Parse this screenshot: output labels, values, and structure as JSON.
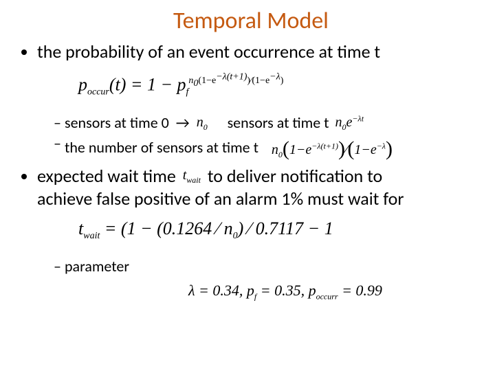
{
  "title": "Temporal Model",
  "bullets": {
    "b1": "the probability of an event occurrence at time t",
    "b2_pre": "expected wait time",
    "b2_mid": "to deliver notification to",
    "b2_line2": "achieve false positive of an alarm 1% must wait for"
  },
  "sub": {
    "s1_pre": "sensors at time 0",
    "s1_post": "sensors at time t",
    "s2_pre": "the number of sensors at time t",
    "s3": "parameter"
  },
  "math": {
    "poccur_lhs": "p",
    "poccur_sub": "occur",
    "p_t": "(t) = 1 − p",
    "pf_sub": "f",
    "n0_base": "n",
    "n0_sub": "0",
    "exp1_open": "(1−e",
    "exp1_sup": "−λ(t+1)",
    "exp1_close": ")",
    "slash": "⁄",
    "exp2_open": "(1−e",
    "exp2_sup": "−λ",
    "exp2_close": ")",
    "arrow": "→",
    "n0e_sup": "−λt",
    "twait": "t",
    "twait_sub": "wait",
    "twait_eq": " = (1 − (0.1264 ⁄ n",
    "twait_eq2": ") ⁄ 0.7117 − 1",
    "params": "λ = 0.34,  p",
    "params_pf": " = 0.35,  p",
    "params_poc_sub": "occurr",
    "params_val": " = 0.99"
  },
  "style": {
    "title_color": "#c55a11",
    "text_color": "#000000",
    "bg": "#ffffff",
    "title_fontsize": 34,
    "body_fontsize": 26,
    "sub_fontsize": 22,
    "math_font": "Times New Roman"
  }
}
